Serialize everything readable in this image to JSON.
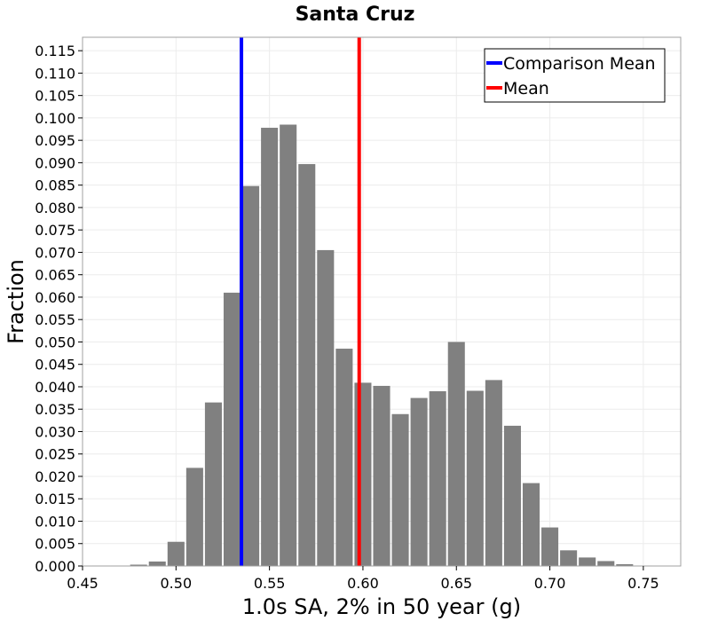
{
  "chart_data": {
    "type": "bar",
    "title": "Santa Cruz",
    "xlabel": "1.0s SA, 2% in 50 year (g)",
    "ylabel": "Fraction",
    "xlim": [
      0.45,
      0.77
    ],
    "ylim": [
      0.0,
      0.118
    ],
    "bin_width": 0.01,
    "grid": true,
    "x_ticks": [
      "0.45",
      "0.50",
      "0.55",
      "0.60",
      "0.65",
      "0.70",
      "0.75"
    ],
    "y_ticks": [
      "0.000",
      "0.005",
      "0.010",
      "0.015",
      "0.020",
      "0.025",
      "0.030",
      "0.035",
      "0.040",
      "0.045",
      "0.050",
      "0.055",
      "0.060",
      "0.065",
      "0.070",
      "0.075",
      "0.080",
      "0.085",
      "0.090",
      "0.095",
      "0.100",
      "0.105",
      "0.110",
      "0.115"
    ],
    "bar_color": "#808080",
    "bins": [
      0.46,
      0.47,
      0.48,
      0.49,
      0.5,
      0.51,
      0.52,
      0.53,
      0.54,
      0.55,
      0.56,
      0.57,
      0.58,
      0.59,
      0.6,
      0.61,
      0.62,
      0.63,
      0.64,
      0.65,
      0.66,
      0.67,
      0.68,
      0.69,
      0.7,
      0.71,
      0.72,
      0.73,
      0.74,
      0.75
    ],
    "values": [
      0.0001,
      0.0001,
      0.0003,
      0.001,
      0.0054,
      0.0219,
      0.0365,
      0.061,
      0.0848,
      0.0978,
      0.0985,
      0.0897,
      0.0705,
      0.0485,
      0.0409,
      0.0402,
      0.0339,
      0.0375,
      0.039,
      0.05,
      0.0391,
      0.0415,
      0.0313,
      0.0185,
      0.0086,
      0.0035,
      0.0019,
      0.0011,
      0.0004,
      0.0001
    ],
    "legend_position": "top-right",
    "vlines": [
      {
        "name": "Comparison Mean",
        "x": 0.535,
        "color": "#0000ff"
      },
      {
        "name": "Mean",
        "x": 0.598,
        "color": "#ff0000"
      }
    ]
  }
}
